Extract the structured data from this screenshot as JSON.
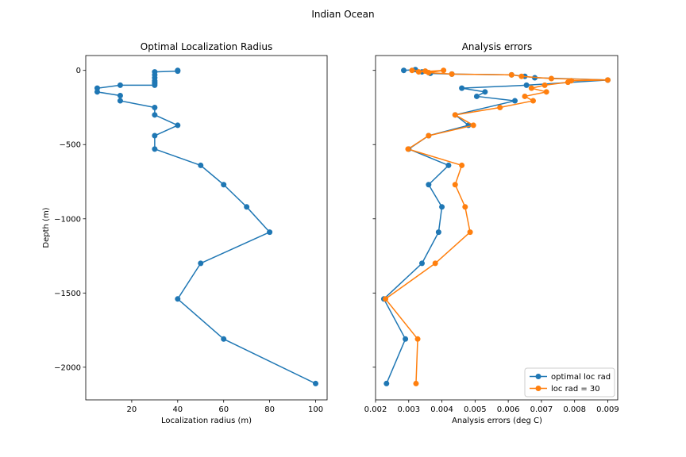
{
  "chart_data": [
    {
      "type": "line",
      "suptitle": "Indian Ocean",
      "title": "Optimal Localization Radius",
      "xlabel": "Localization radius (m)",
      "ylabel": "Depth (m)",
      "xlim": [
        0,
        105
      ],
      "ylim": [
        -2220,
        100
      ],
      "xticks": [
        20,
        40,
        60,
        80,
        100
      ],
      "xtick_labels": [
        "20",
        "40",
        "60",
        "80",
        "100"
      ],
      "yticks": [
        0,
        -500,
        -1000,
        -1500,
        -2000
      ],
      "ytick_labels": [
        "0",
        "−500",
        "−1000",
        "−1500",
        "−2000"
      ],
      "grid": false,
      "color": "#1f77b4",
      "series": [
        {
          "x": [
            40,
            40,
            30,
            30,
            30,
            30,
            30,
            30,
            30,
            15,
            5,
            5,
            15,
            15,
            30,
            30,
            40,
            30,
            30,
            50,
            60,
            70,
            80,
            50,
            40,
            60,
            100
          ],
          "y": [
            0,
            -5,
            -10,
            -30,
            -50,
            -70,
            -80,
            -90,
            -100,
            -100,
            -120,
            -145,
            -170,
            -205,
            -250,
            -300,
            -370,
            -440,
            -530,
            -640,
            -770,
            -920,
            -1090,
            -1300,
            -1540,
            -1810,
            -2110
          ]
        }
      ]
    },
    {
      "type": "line",
      "title": "Analysis errors",
      "xlabel": "Analysis errors (deg C)",
      "ylabel": "",
      "xlim": [
        0.002,
        0.0093
      ],
      "ylim": [
        -2220,
        100
      ],
      "xticks": [
        0.002,
        0.003,
        0.004,
        0.005,
        0.006,
        0.007,
        0.008,
        0.009
      ],
      "xtick_labels": [
        "0.002",
        "0.003",
        "0.004",
        "0.005",
        "0.006",
        "0.007",
        "0.008",
        "0.009"
      ],
      "yticks": [
        0,
        -500,
        -1000,
        -1500,
        -2000
      ],
      "grid": false,
      "legend_position": "lower-right",
      "series": [
        {
          "name": "optimal loc rad",
          "color": "#1f77b4",
          "x": [
            0.00285,
            0.0032,
            0.0034,
            0.00365,
            0.0043,
            0.0061,
            0.0065,
            0.0068,
            0.009,
            0.00655,
            0.0046,
            0.0053,
            0.00505,
            0.0062,
            0.0044,
            0.0048,
            0.0036,
            0.003,
            0.0042,
            0.0036,
            0.004,
            0.0039,
            0.0034,
            0.00225,
            0.0029,
            0.00233
          ],
          "y": [
            0,
            5,
            -10,
            -20,
            -25,
            -30,
            -40,
            -50,
            -65,
            -100,
            -120,
            -145,
            -175,
            -205,
            -300,
            -370,
            -440,
            -530,
            -640,
            -770,
            -920,
            -1090,
            -1300,
            -1540,
            -1810,
            -2110
          ]
        },
        {
          "name": "loc rad = 30",
          "color": "#ff7f0e",
          "x": [
            0.0031,
            0.0035,
            0.0033,
            0.00405,
            0.0036,
            0.0043,
            0.0061,
            0.0064,
            0.0073,
            0.009,
            0.0079,
            0.0078,
            0.0071,
            0.0067,
            0.00715,
            0.0065,
            0.00675,
            0.00575,
            0.0044,
            0.00495,
            0.0036,
            0.00298,
            0.0046,
            0.0044,
            0.0047,
            0.00485,
            0.0038,
            0.0023,
            0.00327,
            0.00322
          ],
          "y": [
            0,
            -5,
            -10,
            0,
            -15,
            -25,
            -30,
            -40,
            -55,
            -65,
            -70,
            -80,
            -100,
            -120,
            -145,
            -175,
            -205,
            -250,
            -300,
            -370,
            -440,
            -530,
            -640,
            -770,
            -920,
            -1090,
            -1300,
            -1540,
            -1810,
            -2110
          ]
        }
      ]
    }
  ]
}
